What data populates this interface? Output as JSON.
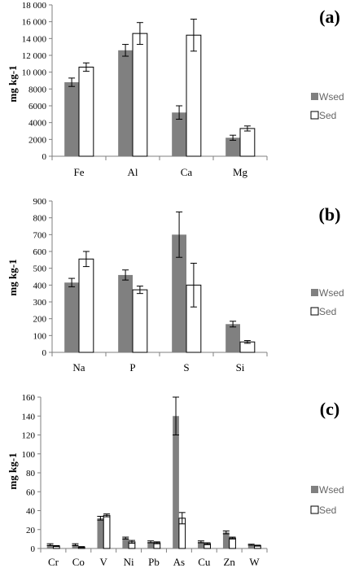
{
  "chart_data": [
    {
      "type": "bar",
      "panel_label": "(a)",
      "ylabel": "mg kg-1",
      "categories": [
        "Fe",
        "Al",
        "Ca",
        "Mg"
      ],
      "ylim": [
        0,
        18000
      ],
      "yticks": [
        "0",
        "2000",
        "4000",
        "6000",
        "8000",
        "10 000",
        "12 000",
        "14 000",
        "16 000",
        "18 000"
      ],
      "ytick_values": [
        0,
        2000,
        4000,
        6000,
        8000,
        10000,
        12000,
        14000,
        16000,
        18000
      ],
      "series": [
        {
          "name": "Wsed",
          "color": "#808080",
          "values": [
            8800,
            12600,
            5200,
            2200
          ],
          "errors": [
            500,
            700,
            800,
            300
          ]
        },
        {
          "name": "Sed",
          "color": "#ffffff",
          "values": [
            10600,
            14600,
            14400,
            3300
          ],
          "errors": [
            500,
            1300,
            1900,
            300
          ]
        }
      ],
      "legend_position": "right"
    },
    {
      "type": "bar",
      "panel_label": "(b)",
      "ylabel": "mg kg-1",
      "categories": [
        "Na",
        "P",
        "S",
        "Si"
      ],
      "ylim": [
        0,
        900
      ],
      "yticks": [
        "0",
        "100",
        "200",
        "300",
        "400",
        "500",
        "600",
        "700",
        "800",
        "900"
      ],
      "ytick_values": [
        0,
        100,
        200,
        300,
        400,
        500,
        600,
        700,
        800,
        900
      ],
      "series": [
        {
          "name": "Wsed",
          "color": "#808080",
          "values": [
            415,
            460,
            700,
            168
          ],
          "errors": [
            25,
            30,
            135,
            17
          ]
        },
        {
          "name": "Sed",
          "color": "#ffffff",
          "values": [
            555,
            372,
            400,
            62
          ],
          "errors": [
            45,
            22,
            130,
            8
          ]
        }
      ],
      "legend_position": "right"
    },
    {
      "type": "bar",
      "panel_label": "(c)",
      "ylabel": "mg kg-1",
      "categories": [
        "Cr",
        "Co",
        "V",
        "Ni",
        "Pb",
        "As",
        "Cu",
        "Zn",
        "W"
      ],
      "ylim": [
        0,
        160
      ],
      "yticks": [
        "0",
        "20",
        "40",
        "60",
        "80",
        "100",
        "120",
        "140",
        "160"
      ],
      "ytick_values": [
        0,
        20,
        40,
        60,
        80,
        100,
        120,
        140,
        160
      ],
      "series": [
        {
          "name": "Wsed",
          "color": "#808080",
          "values": [
            4,
            4,
            32,
            11,
            7,
            140,
            7,
            17,
            4
          ],
          "errors": [
            1,
            1,
            2,
            1,
            1,
            20,
            1,
            1.5,
            0.5
          ]
        },
        {
          "name": "Sed",
          "color": "#ffffff",
          "values": [
            2.5,
            1.5,
            35,
            7,
            6,
            32,
            5,
            11,
            3
          ],
          "errors": [
            0.5,
            0.5,
            1.5,
            1.5,
            1,
            6,
            1,
            1,
            0.5
          ]
        }
      ],
      "legend_position": "right"
    }
  ]
}
